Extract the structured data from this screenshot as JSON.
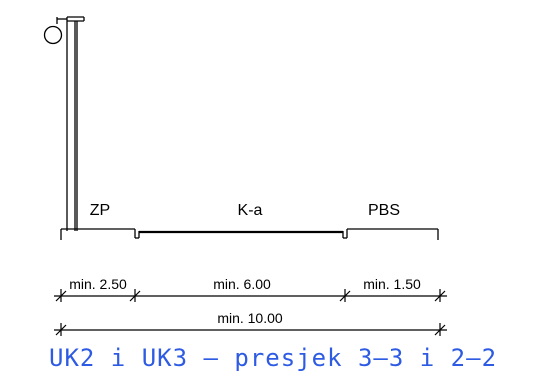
{
  "zones": {
    "zp": "ZP",
    "ka": "K-a",
    "pbs": "PBS"
  },
  "dimensions": {
    "zp": "min. 2.50",
    "ka": "min. 6.00",
    "pbs": "min. 1.50",
    "total": "min. 10.00"
  },
  "title": "UK2 i UK3 – presjek 3–3 i 2–2",
  "colors": {
    "lines": "#000000",
    "title": "#2d5be3"
  },
  "icons": {
    "lamp": "street-light-icon"
  }
}
